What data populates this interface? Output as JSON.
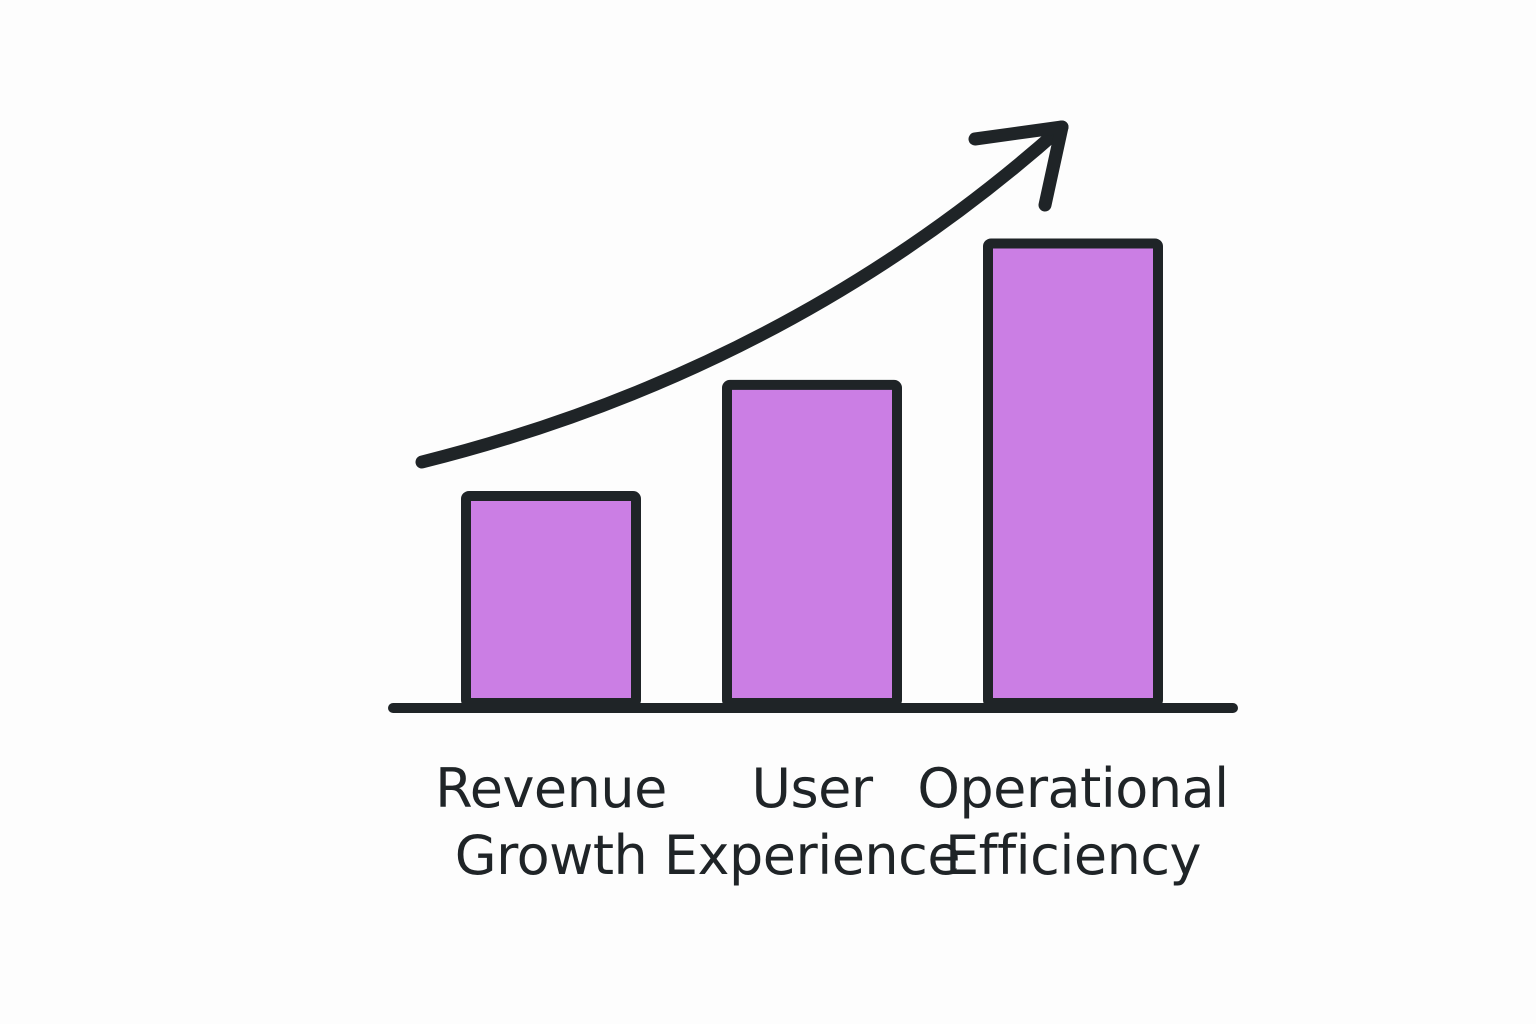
{
  "chart_data": {
    "type": "bar",
    "categories": [
      [
        "Revenue",
        "Growth"
      ],
      [
        "User",
        "Experience"
      ],
      [
        "Operational",
        "Efficiency"
      ]
    ],
    "values": [
      41,
      63,
      91
    ],
    "ylim": [
      0,
      100
    ],
    "title": "",
    "xlabel": "",
    "ylabel": "",
    "grid": false,
    "legend": "none",
    "annotations": [
      {
        "type": "trend-arrow",
        "direction": "up-right"
      }
    ]
  },
  "colors": {
    "bar_fill": "#cb7ee4",
    "outline": "#1f2427",
    "text": "#1f2427",
    "background": "#fdfdfd"
  },
  "icons": {
    "trend": "upward-trend-arrow-icon"
  }
}
